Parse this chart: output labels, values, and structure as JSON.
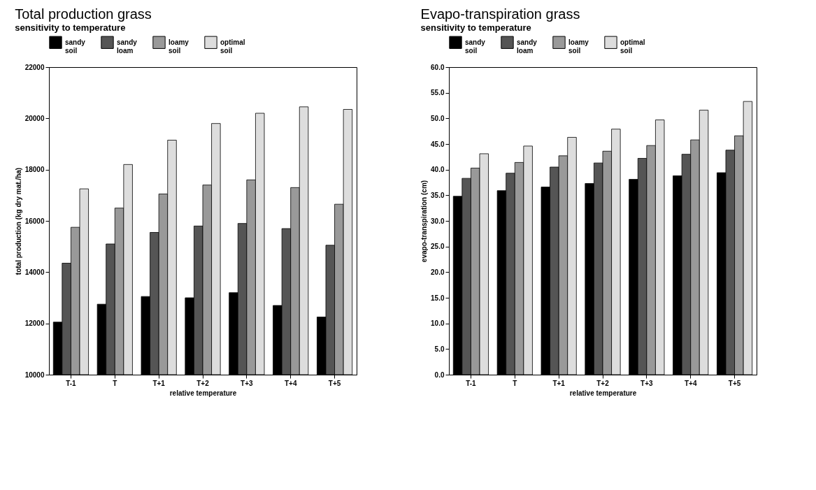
{
  "chart_data": [
    {
      "type": "bar",
      "title": "Total production grass",
      "subtitle": "sensitivity to temperature",
      "xlabel": "relative temperature",
      "ylabel": "total production (kg dry mat./ha)",
      "categories": [
        "T-1",
        "T",
        "T+1",
        "T+2",
        "T+3",
        "T+4",
        "T+5"
      ],
      "series": [
        {
          "name": "sandy soil",
          "color": "#000000",
          "values": [
            12050,
            12750,
            13050,
            13000,
            13200,
            12700,
            12250
          ]
        },
        {
          "name": "sandy loam",
          "color": "#555555",
          "values": [
            14350,
            15100,
            15550,
            15800,
            15900,
            15700,
            15050
          ]
        },
        {
          "name": "loamy soil",
          "color": "#999999",
          "values": [
            15750,
            16500,
            17050,
            17400,
            17600,
            17300,
            16650
          ]
        },
        {
          "name": "optimal soil",
          "color": "#dddddd",
          "values": [
            17250,
            18200,
            19150,
            19800,
            20200,
            20450,
            20350
          ]
        }
      ],
      "ylim": [
        10000,
        22000
      ],
      "yticks": [
        10000,
        12000,
        14000,
        16000,
        18000,
        20000,
        22000
      ],
      "legend": "top"
    },
    {
      "type": "bar",
      "title": "Evapo-transpiration grass",
      "subtitle": "sensitivity to temperature",
      "xlabel": "relative temperature",
      "ylabel": "evapo-transpiration (cm)",
      "categories": [
        "T-1",
        "T",
        "T+1",
        "T+2",
        "T+3",
        "T+4",
        "T+5"
      ],
      "series": [
        {
          "name": "sandy soil",
          "color": "#000000",
          "values": [
            34.8,
            35.9,
            36.6,
            37.3,
            38.1,
            38.8,
            39.4
          ]
        },
        {
          "name": "sandy loam",
          "color": "#555555",
          "values": [
            38.3,
            39.3,
            40.5,
            41.3,
            42.2,
            43.0,
            43.8
          ]
        },
        {
          "name": "loamy soil",
          "color": "#999999",
          "values": [
            40.3,
            41.4,
            42.7,
            43.6,
            44.7,
            45.8,
            46.6
          ]
        },
        {
          "name": "optimal soil",
          "color": "#dddddd",
          "values": [
            43.1,
            44.6,
            46.3,
            47.9,
            49.7,
            51.6,
            53.3
          ]
        }
      ],
      "ylim": [
        0,
        60
      ],
      "yticks": [
        {
          "value": 0,
          "label": "0.0"
        },
        {
          "value": 5,
          "label": "5.0"
        },
        {
          "value": 10,
          "label": "10.0"
        },
        {
          "value": 15,
          "label": "15.0"
        },
        {
          "value": 20,
          "label": "20.0"
        },
        {
          "value": 25,
          "label": "25.0"
        },
        {
          "value": 30,
          "label": "30.0"
        },
        {
          "value": 35,
          "label": "35.0"
        },
        {
          "value": 40,
          "label": "40.0"
        },
        {
          "value": 45,
          "label": "45.0"
        },
        {
          "value": 50,
          "label": "50.0"
        },
        {
          "value": 55,
          "label": "55.0"
        },
        {
          "value": 60,
          "label": "60.0"
        }
      ],
      "legend": "top"
    }
  ]
}
